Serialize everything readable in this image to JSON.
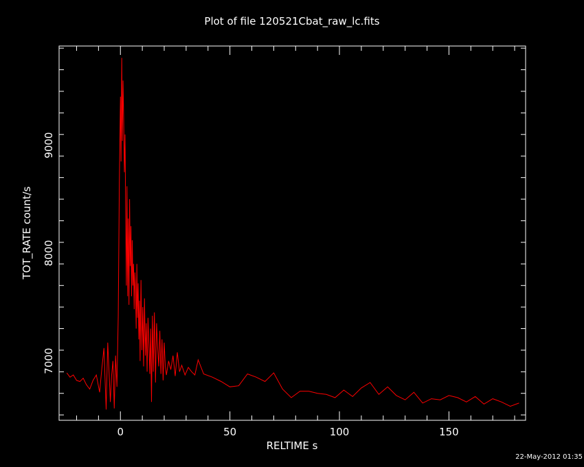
{
  "chart_data": {
    "type": "line",
    "title": "Plot of file 120521Cbat_raw_lc.fits",
    "xlabel": "RELTIME   s",
    "ylabel": "TOT_RATE   count/s",
    "xlim": [
      -28,
      185
    ],
    "ylim": [
      6450,
      9920
    ],
    "xticks": [
      0,
      50,
      100,
      150
    ],
    "yticks": [
      7000,
      8000,
      9000
    ],
    "grid": false,
    "line_color": "#ff0000",
    "x": [
      -24.5,
      -23,
      -21.5,
      -20,
      -18.5,
      -17,
      -15.5,
      -14,
      -12.5,
      -11,
      -9.5,
      -8.5,
      -7.5,
      -6.5,
      -5.8,
      -5.2,
      -4.6,
      -4,
      -3.4,
      -2.8,
      -2.2,
      -1.6,
      -1,
      -0.5,
      0,
      0.3,
      0.6,
      0.9,
      1.2,
      1.5,
      1.8,
      2.1,
      2.4,
      2.7,
      3,
      3.3,
      3.6,
      3.9,
      4.2,
      4.5,
      4.8,
      5.1,
      5.4,
      5.7,
      6,
      6.3,
      6.6,
      6.9,
      7.2,
      7.5,
      7.8,
      8.1,
      8.4,
      8.7,
      9,
      9.4,
      9.8,
      10.2,
      10.6,
      11,
      11.4,
      11.8,
      12.2,
      12.6,
      13,
      13.4,
      13.8,
      14.2,
      14.6,
      15,
      15.5,
      16,
      16.5,
      17,
      17.5,
      18,
      18.5,
      19,
      19.5,
      20,
      20.5,
      21,
      22,
      23,
      24,
      25,
      26,
      27,
      28,
      29.5,
      31,
      32.5,
      34,
      35.5,
      38,
      42,
      46,
      50,
      54,
      58,
      62,
      66,
      70,
      74,
      78,
      82,
      86,
      90,
      94,
      98,
      102,
      106,
      110,
      114,
      118,
      122,
      126,
      130,
      134,
      138,
      142,
      146,
      150,
      154,
      158,
      162,
      166,
      170,
      174,
      178,
      182
    ],
    "y": [
      6890,
      6850,
      6870,
      6820,
      6810,
      6840,
      6780,
      6740,
      6820,
      6870,
      6710,
      6930,
      7120,
      6550,
      7170,
      6900,
      6620,
      6870,
      7000,
      6560,
      7050,
      6760,
      7420,
      8650,
      9450,
      8850,
      9810,
      9040,
      9600,
      9250,
      8750,
      9100,
      8350,
      7700,
      8620,
      7600,
      8320,
      7520,
      8500,
      7880,
      8250,
      7600,
      8120,
      7700,
      7900,
      7480,
      7820,
      7650,
      7300,
      7900,
      7400,
      7720,
      7200,
      7560,
      7000,
      7750,
      7100,
      7500,
      6950,
      7580,
      7050,
      7350,
      6900,
      7400,
      7150,
      6880,
      7300,
      6620,
      7420,
      6900,
      7450,
      6800,
      7350,
      7120,
      6950,
      7280,
      6880,
      7200,
      6820,
      7170,
      6950,
      6870,
      7000,
      6920,
      7050,
      6860,
      7080,
      6900,
      6960,
      6870,
      6940,
      6900,
      6870,
      7010,
      6880,
      6850,
      6810,
      6760,
      6770,
      6880,
      6850,
      6810,
      6890,
      6740,
      6660,
      6720,
      6720,
      6700,
      6690,
      6660,
      6730,
      6670,
      6750,
      6800,
      6690,
      6760,
      6680,
      6640,
      6710,
      6610,
      6650,
      6640,
      6680,
      6660,
      6620,
      6670,
      6600,
      6650,
      6620,
      6580,
      6610
    ]
  },
  "timestamp": "22-May-2012 01:35"
}
